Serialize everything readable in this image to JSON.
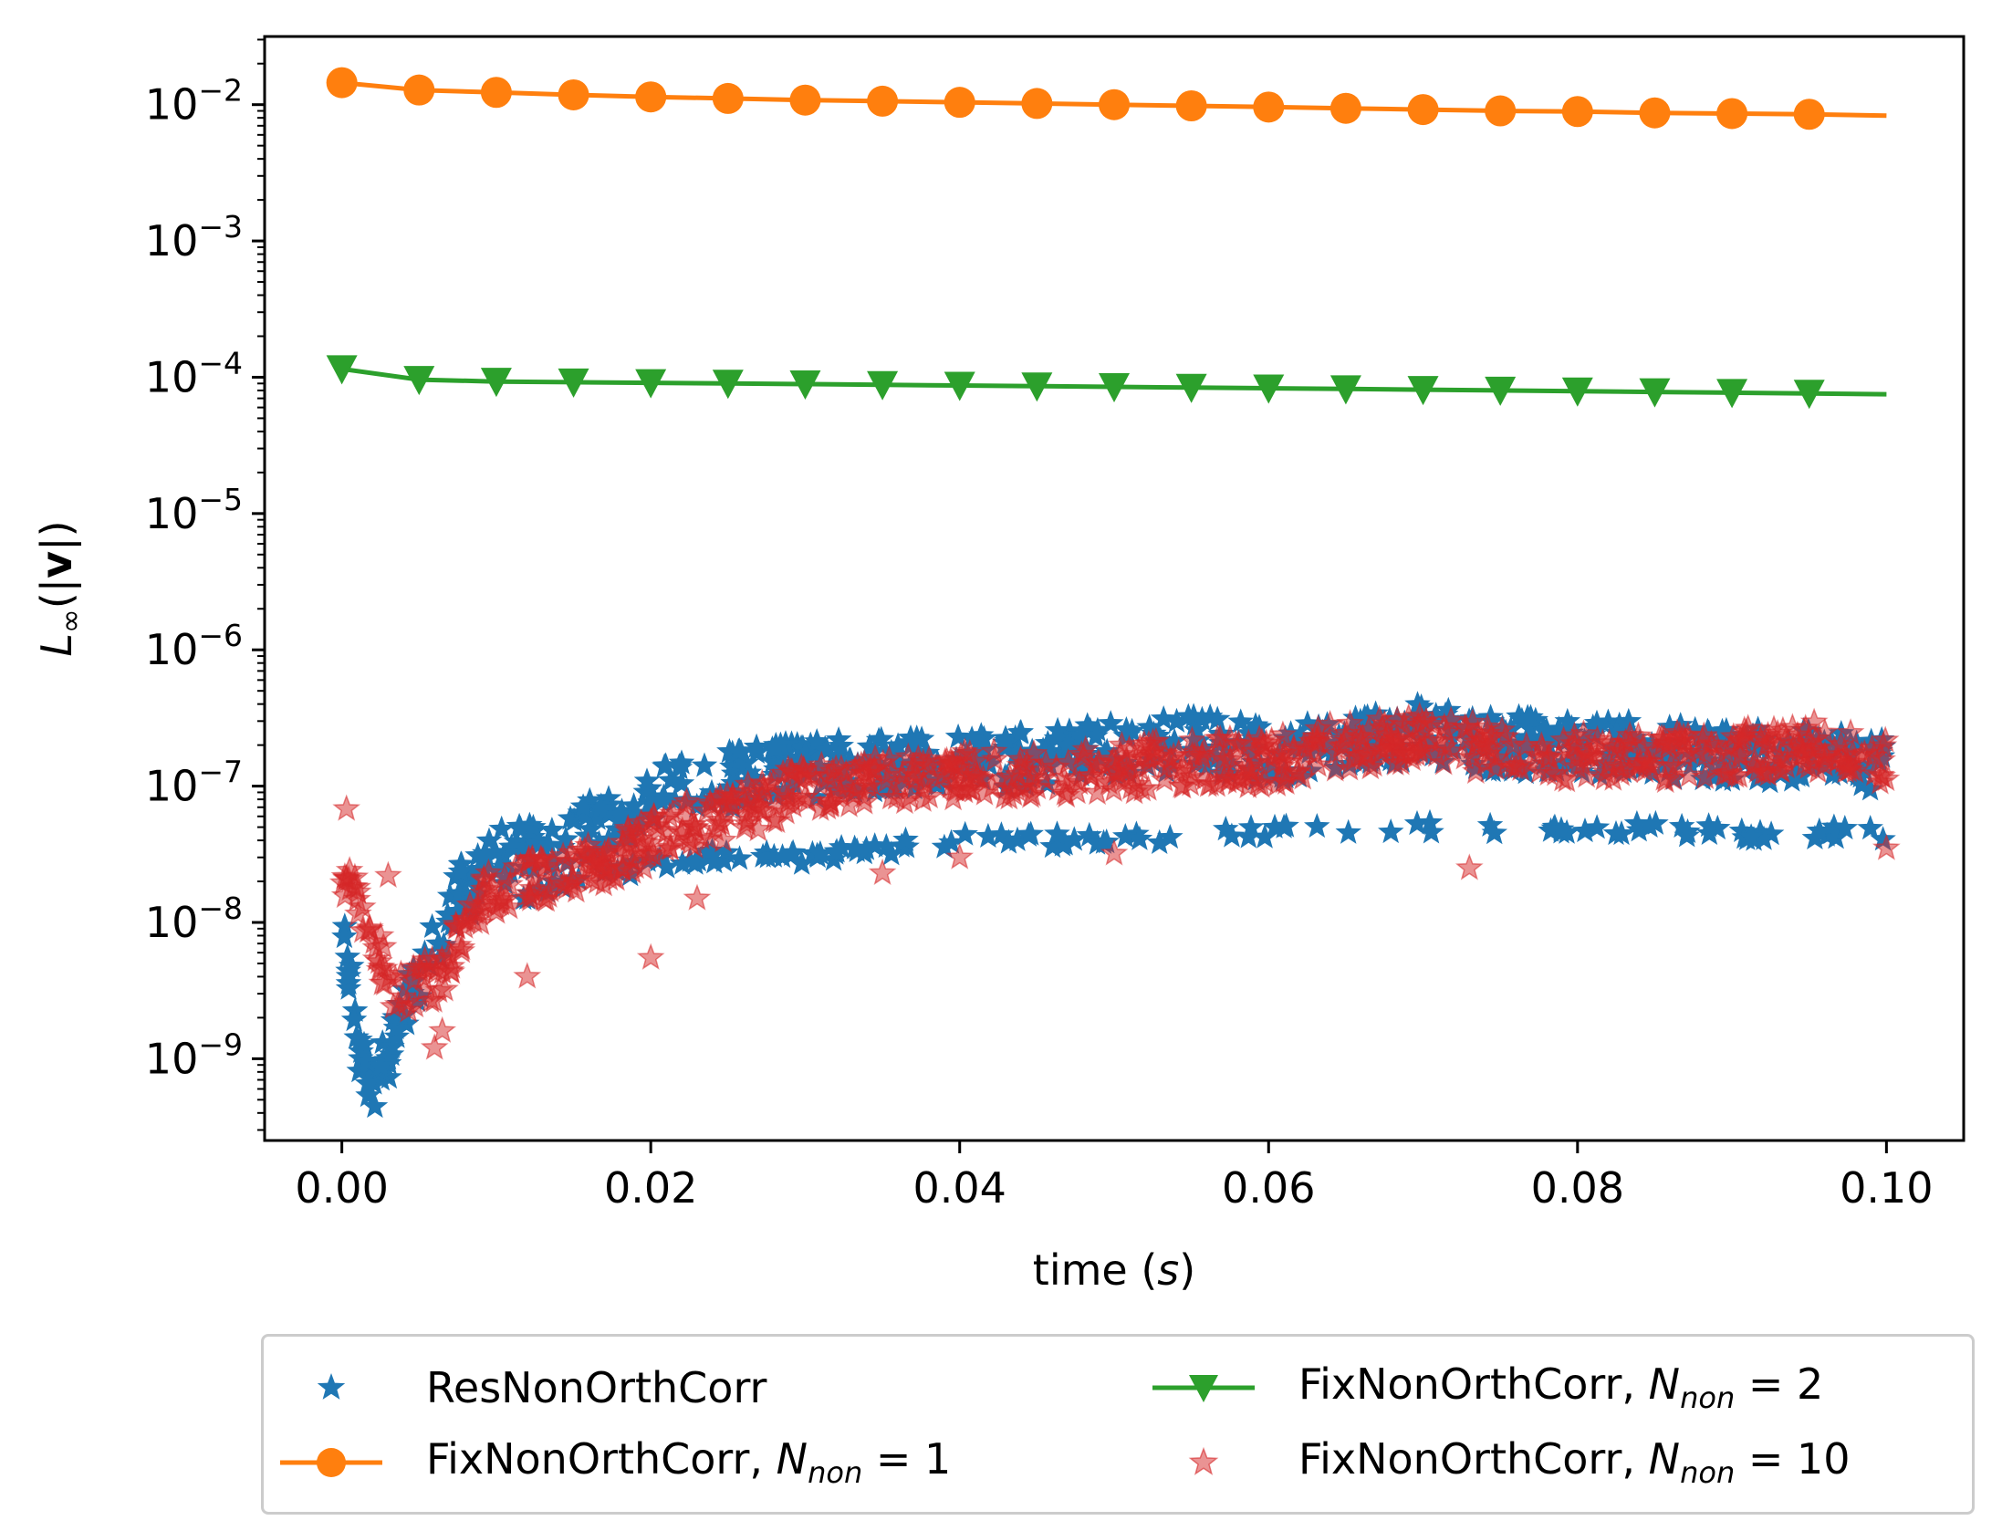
{
  "chart_data": {
    "type": "scatter",
    "title": "",
    "xlabel": "time (s)",
    "ylabel": "L∞(|v|)",
    "xlim": [
      -0.005,
      0.105
    ],
    "ylim_log10": [
      -9.6,
      -1.5
    ],
    "yscale": "log",
    "grid": false,
    "legend_position": "bottom (below plot, 2 columns)",
    "x_ticks": [
      "0.00",
      "0.02",
      "0.04",
      "0.06",
      "0.08",
      "0.10"
    ],
    "y_ticks_exponents": [
      -9,
      -8,
      -7,
      -6,
      -5,
      -4,
      -3,
      -2
    ],
    "series": [
      {
        "name": "ResNonOrthCorr",
        "color": "#1f77b4",
        "marker": "star",
        "line": false,
        "trend_points": [
          [
            0.0,
            7e-09
          ],
          [
            0.0005,
            5e-09
          ],
          [
            0.001,
            1.5e-09
          ],
          [
            0.0015,
            9e-10
          ],
          [
            0.002,
            6e-10
          ],
          [
            0.003,
            1e-09
          ],
          [
            0.004,
            2e-09
          ],
          [
            0.005,
            4e-09
          ],
          [
            0.006,
            7e-09
          ],
          [
            0.007,
            1.3e-08
          ],
          [
            0.008,
            2e-08
          ],
          [
            0.01,
            3e-08
          ],
          [
            0.012,
            3.5e-08
          ],
          [
            0.015,
            4.5e-08
          ],
          [
            0.018,
            6e-08
          ],
          [
            0.02,
            8e-08
          ],
          [
            0.022,
            1e-07
          ],
          [
            0.025,
            1.1e-07
          ],
          [
            0.028,
            1.3e-07
          ],
          [
            0.03,
            1.3e-07
          ],
          [
            0.035,
            1.5e-07
          ],
          [
            0.04,
            1.5e-07
          ],
          [
            0.045,
            1.6e-07
          ],
          [
            0.05,
            1.8e-07
          ],
          [
            0.055,
            2.2e-07
          ],
          [
            0.06,
            1.7e-07
          ],
          [
            0.065,
            2.2e-07
          ],
          [
            0.07,
            2.5e-07
          ],
          [
            0.075,
            2e-07
          ],
          [
            0.08,
            2e-07
          ],
          [
            0.085,
            1.8e-07
          ],
          [
            0.09,
            1.7e-07
          ],
          [
            0.095,
            1.6e-07
          ],
          [
            0.1,
            1.5e-07
          ]
        ],
        "lower_band_points": [
          [
            0.008,
            1.2e-08
          ],
          [
            0.015,
            2e-08
          ],
          [
            0.022,
            3e-08
          ],
          [
            0.03,
            3e-08
          ],
          [
            0.04,
            4e-08
          ],
          [
            0.05,
            4e-08
          ],
          [
            0.06,
            4.5e-08
          ],
          [
            0.065,
            5e-08
          ],
          [
            0.07,
            5e-08
          ],
          [
            0.08,
            5e-08
          ],
          [
            0.09,
            4.5e-08
          ],
          [
            0.1,
            4.5e-08
          ]
        ]
      },
      {
        "name": "FixNonOrthCorr, N_non = 1",
        "color": "#ff7f0e",
        "marker": "circle",
        "line": true,
        "x": [
          0.0,
          0.005,
          0.01,
          0.015,
          0.02,
          0.025,
          0.03,
          0.035,
          0.04,
          0.045,
          0.05,
          0.055,
          0.06,
          0.065,
          0.07,
          0.075,
          0.08,
          0.085,
          0.09,
          0.095
        ],
        "y": [
          0.0145,
          0.0128,
          0.0123,
          0.0118,
          0.0114,
          0.0111,
          0.0108,
          0.0106,
          0.0104,
          0.0102,
          0.01,
          0.0098,
          0.0096,
          0.0094,
          0.0092,
          0.009,
          0.0089,
          0.0087,
          0.0086,
          0.0085
        ],
        "line_end": [
          0.1,
          0.0083
        ]
      },
      {
        "name": "FixNonOrthCorr, N_non = 2",
        "color": "#2ca02c",
        "marker": "triangle-down",
        "line": true,
        "x": [
          0.0,
          0.005,
          0.01,
          0.015,
          0.02,
          0.025,
          0.03,
          0.035,
          0.04,
          0.045,
          0.05,
          0.055,
          0.06,
          0.065,
          0.07,
          0.075,
          0.08,
          0.085,
          0.09,
          0.095
        ],
        "y": [
          0.000115,
          9.6e-05,
          9.3e-05,
          9.2e-05,
          9.1e-05,
          9e-05,
          8.9e-05,
          8.8e-05,
          8.7e-05,
          8.6e-05,
          8.5e-05,
          8.4e-05,
          8.3e-05,
          8.2e-05,
          8.1e-05,
          8e-05,
          7.9e-05,
          7.8e-05,
          7.7e-05,
          7.6e-05
        ],
        "line_end": [
          0.1,
          7.5e-05
        ]
      },
      {
        "name": "FixNonOrthCorr, N_non = 10",
        "color": "#d62728",
        "marker": "star",
        "line": false,
        "trend_points": [
          [
            0.0,
            2e-08
          ],
          [
            0.001,
            1.5e-08
          ],
          [
            0.002,
            8e-09
          ],
          [
            0.003,
            4e-09
          ],
          [
            0.004,
            3e-09
          ],
          [
            0.005,
            3.5e-09
          ],
          [
            0.006,
            4e-09
          ],
          [
            0.007,
            5e-09
          ],
          [
            0.008,
            1e-08
          ],
          [
            0.01,
            1.8e-08
          ],
          [
            0.012,
            2e-08
          ],
          [
            0.015,
            2.3e-08
          ],
          [
            0.018,
            3e-08
          ],
          [
            0.02,
            4e-08
          ],
          [
            0.022,
            5e-08
          ],
          [
            0.025,
            6e-08
          ],
          [
            0.028,
            8e-08
          ],
          [
            0.03,
            1e-07
          ],
          [
            0.035,
            1.1e-07
          ],
          [
            0.04,
            1.2e-07
          ],
          [
            0.045,
            1.2e-07
          ],
          [
            0.05,
            1.3e-07
          ],
          [
            0.055,
            1.5e-07
          ],
          [
            0.06,
            1.5e-07
          ],
          [
            0.065,
            2e-07
          ],
          [
            0.07,
            2.2e-07
          ],
          [
            0.075,
            1.8e-07
          ],
          [
            0.08,
            1.6e-07
          ],
          [
            0.085,
            1.6e-07
          ],
          [
            0.09,
            1.7e-07
          ],
          [
            0.095,
            2e-07
          ],
          [
            0.1,
            1.5e-07
          ]
        ],
        "outliers": [
          [
            0.0003,
            6.8e-08
          ],
          [
            0.0005,
            2.4e-08
          ],
          [
            0.001,
            1.8e-08
          ],
          [
            0.003,
            2.2e-08
          ],
          [
            0.006,
            1.2e-09
          ],
          [
            0.0065,
            1.6e-09
          ],
          [
            0.012,
            4e-09
          ],
          [
            0.02,
            5.5e-09
          ],
          [
            0.023,
            1.5e-08
          ],
          [
            0.035,
            2.3e-08
          ],
          [
            0.04,
            3e-08
          ],
          [
            0.05,
            3.2e-08
          ],
          [
            0.073,
            2.5e-08
          ],
          [
            0.1,
            3.5e-08
          ]
        ]
      }
    ]
  },
  "legend": {
    "items": [
      {
        "text": "ResNonOrthCorr",
        "sub": "",
        "value": ""
      },
      {
        "text": "FixNonOrthCorr, ",
        "sub": "non",
        "value": " = 1"
      },
      {
        "text": "FixNonOrthCorr, ",
        "sub": "non",
        "value": " = 2"
      },
      {
        "text": "FixNonOrthCorr, ",
        "sub": "non",
        "value": " = 10"
      }
    ],
    "var_letter": "N"
  }
}
